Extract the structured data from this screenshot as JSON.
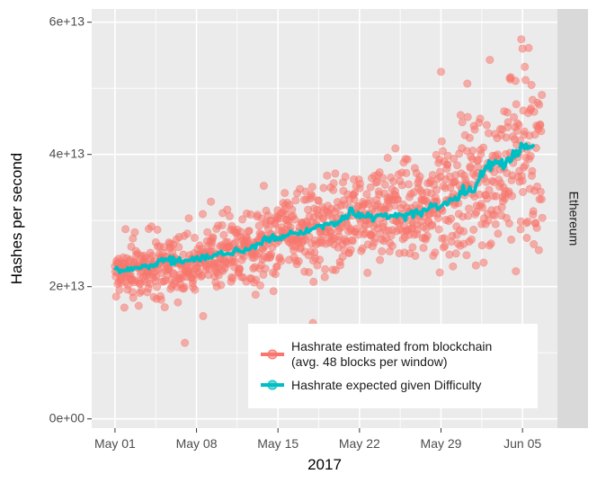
{
  "chart_data": {
    "type": "scatter",
    "facet_label": "Ethereum",
    "xlabel": "2017",
    "ylabel": "Hashes per second",
    "x_start": "2017-05-01",
    "x_end": "2017-06-06",
    "xlim": [
      "2017-04-29",
      "2017-06-08"
    ],
    "ylim": [
      -1400000000000.0,
      62000000000000.0
    ],
    "x_ticks": [
      {
        "date": "2017-05-01",
        "label": "May 01"
      },
      {
        "date": "2017-05-08",
        "label": "May 08"
      },
      {
        "date": "2017-05-15",
        "label": "May 15"
      },
      {
        "date": "2017-05-22",
        "label": "May 22"
      },
      {
        "date": "2017-05-29",
        "label": "May 29"
      },
      {
        "date": "2017-06-05",
        "label": "Jun 05"
      }
    ],
    "y_ticks": [
      {
        "value": 0,
        "label": "0e+00"
      },
      {
        "value": 20000000000000.0,
        "label": "2e+13"
      },
      {
        "value": 40000000000000.0,
        "label": "4e+13"
      },
      {
        "value": 60000000000000.0,
        "label": "6e+13"
      }
    ],
    "grid": true,
    "legend_position": "bottom-right",
    "series": [
      {
        "name": "Hashrate estimated from blockchain\n(avg. 48 blocks per window)",
        "kind": "points",
        "color": "#F8766D",
        "points_per_day": 30,
        "note_trend": [
          {
            "date": "2017-05-01",
            "value": 22500000000000.0
          },
          {
            "date": "2017-05-08",
            "value": 24000000000000.0
          },
          {
            "date": "2017-05-15",
            "value": 27500000000000.0
          },
          {
            "date": "2017-05-22",
            "value": 30500000000000.0
          },
          {
            "date": "2017-05-29",
            "value": 32500000000000.0
          },
          {
            "date": "2017-06-06",
            "value": 41000000000000.0
          }
        ],
        "highlighted_outliers": [
          {
            "date": "2017-05-07",
            "value": 11500000000000.0
          },
          {
            "date": "2017-05-18",
            "value": 14500000000000.0
          },
          {
            "date": "2017-05-29",
            "value": 52500000000000.0
          },
          {
            "date": "2017-06-05",
            "value": 56000000000000.0
          }
        ]
      },
      {
        "name": "Hashrate expected given Difficulty",
        "kind": "line",
        "color": "#00BFC4",
        "values": [
          {
            "date": "2017-05-01",
            "value": 22500000000000.0
          },
          {
            "date": "2017-05-03",
            "value": 22800000000000.0
          },
          {
            "date": "2017-05-05",
            "value": 23800000000000.0
          },
          {
            "date": "2017-05-08",
            "value": 24200000000000.0
          },
          {
            "date": "2017-05-10",
            "value": 24800000000000.0
          },
          {
            "date": "2017-05-12",
            "value": 25500000000000.0
          },
          {
            "date": "2017-05-14",
            "value": 27200000000000.0
          },
          {
            "date": "2017-05-16",
            "value": 27800000000000.0
          },
          {
            "date": "2017-05-18",
            "value": 28800000000000.0
          },
          {
            "date": "2017-05-20",
            "value": 29800000000000.0
          },
          {
            "date": "2017-05-21",
            "value": 31000000000000.0
          },
          {
            "date": "2017-05-23",
            "value": 30500000000000.0
          },
          {
            "date": "2017-05-25",
            "value": 30800000000000.0
          },
          {
            "date": "2017-05-27",
            "value": 31200000000000.0
          },
          {
            "date": "2017-05-28",
            "value": 31800000000000.0
          },
          {
            "date": "2017-05-29",
            "value": 32200000000000.0
          },
          {
            "date": "2017-05-31",
            "value": 34200000000000.0
          },
          {
            "date": "2017-06-01",
            "value": 35200000000000.0
          },
          {
            "date": "2017-06-02",
            "value": 38500000000000.0
          },
          {
            "date": "2017-06-04",
            "value": 39000000000000.0
          },
          {
            "date": "2017-06-05",
            "value": 41200000000000.0
          },
          {
            "date": "2017-06-06",
            "value": 41500000000000.0
          }
        ]
      }
    ]
  }
}
